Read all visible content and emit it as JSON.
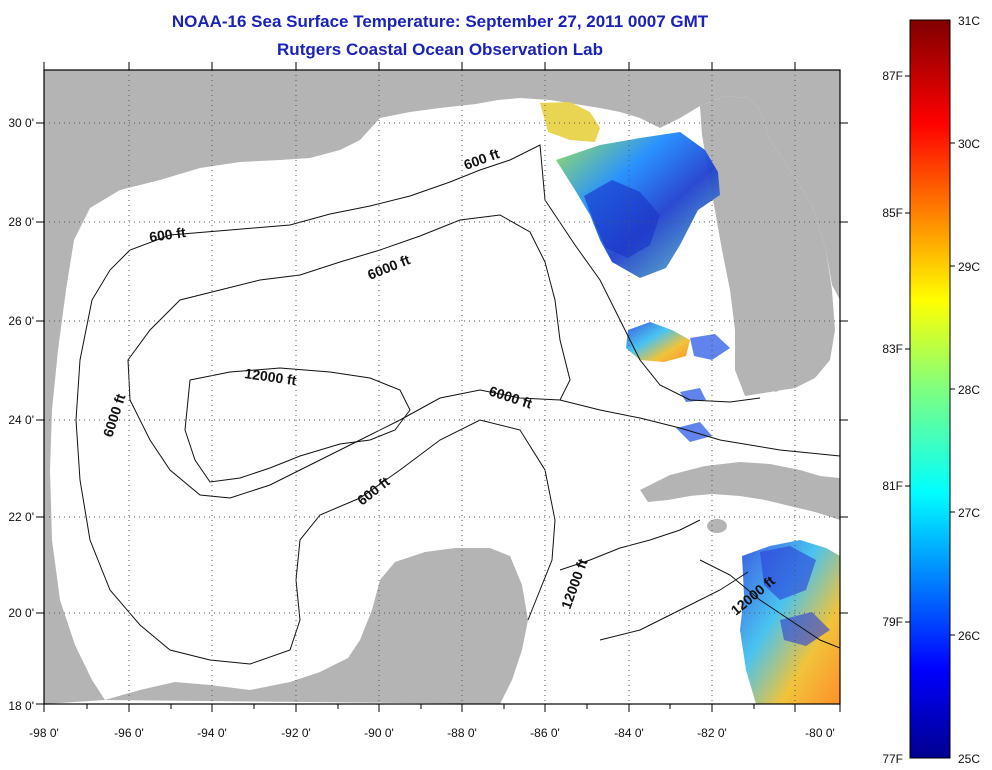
{
  "title_line1": "NOAA-16 Sea Surface Temperature:  September 27, 2011 0007 GMT",
  "title_line2": "Rutgers Coastal Ocean Observation Lab",
  "lon_ticks": [
    "-98 0'",
    "-96 0'",
    "-94 0'",
    "-92 0'",
    "-90 0'",
    "-88 0'",
    "-86 0'",
    "-84 0'",
    "-82 0'",
    "-80 0'"
  ],
  "lat_ticks": [
    "30 0'",
    "28 0'",
    "26 0'",
    "24 0'",
    "22 0'",
    "20 0'",
    "18 0'"
  ],
  "contour_labels": [
    "600 ft",
    "600 ft",
    "600 ft",
    "6000 ft",
    "6000 ft",
    "6000 ft",
    "12000 ft",
    "12000 ft",
    "12000 ft"
  ],
  "colorbar": {
    "celsius_labels": [
      "31C",
      "30C",
      "29C",
      "28C",
      "27C",
      "26C",
      "25C"
    ],
    "fahrenheit_labels": [
      "87F",
      "85F",
      "83F",
      "81F",
      "79F",
      "77F"
    ],
    "min_c": 25,
    "max_c": 31
  },
  "colors": {
    "title": "#1a22b8",
    "land": "#b4b4b4",
    "ocean": "#ffffff",
    "contour": "#111111"
  }
}
